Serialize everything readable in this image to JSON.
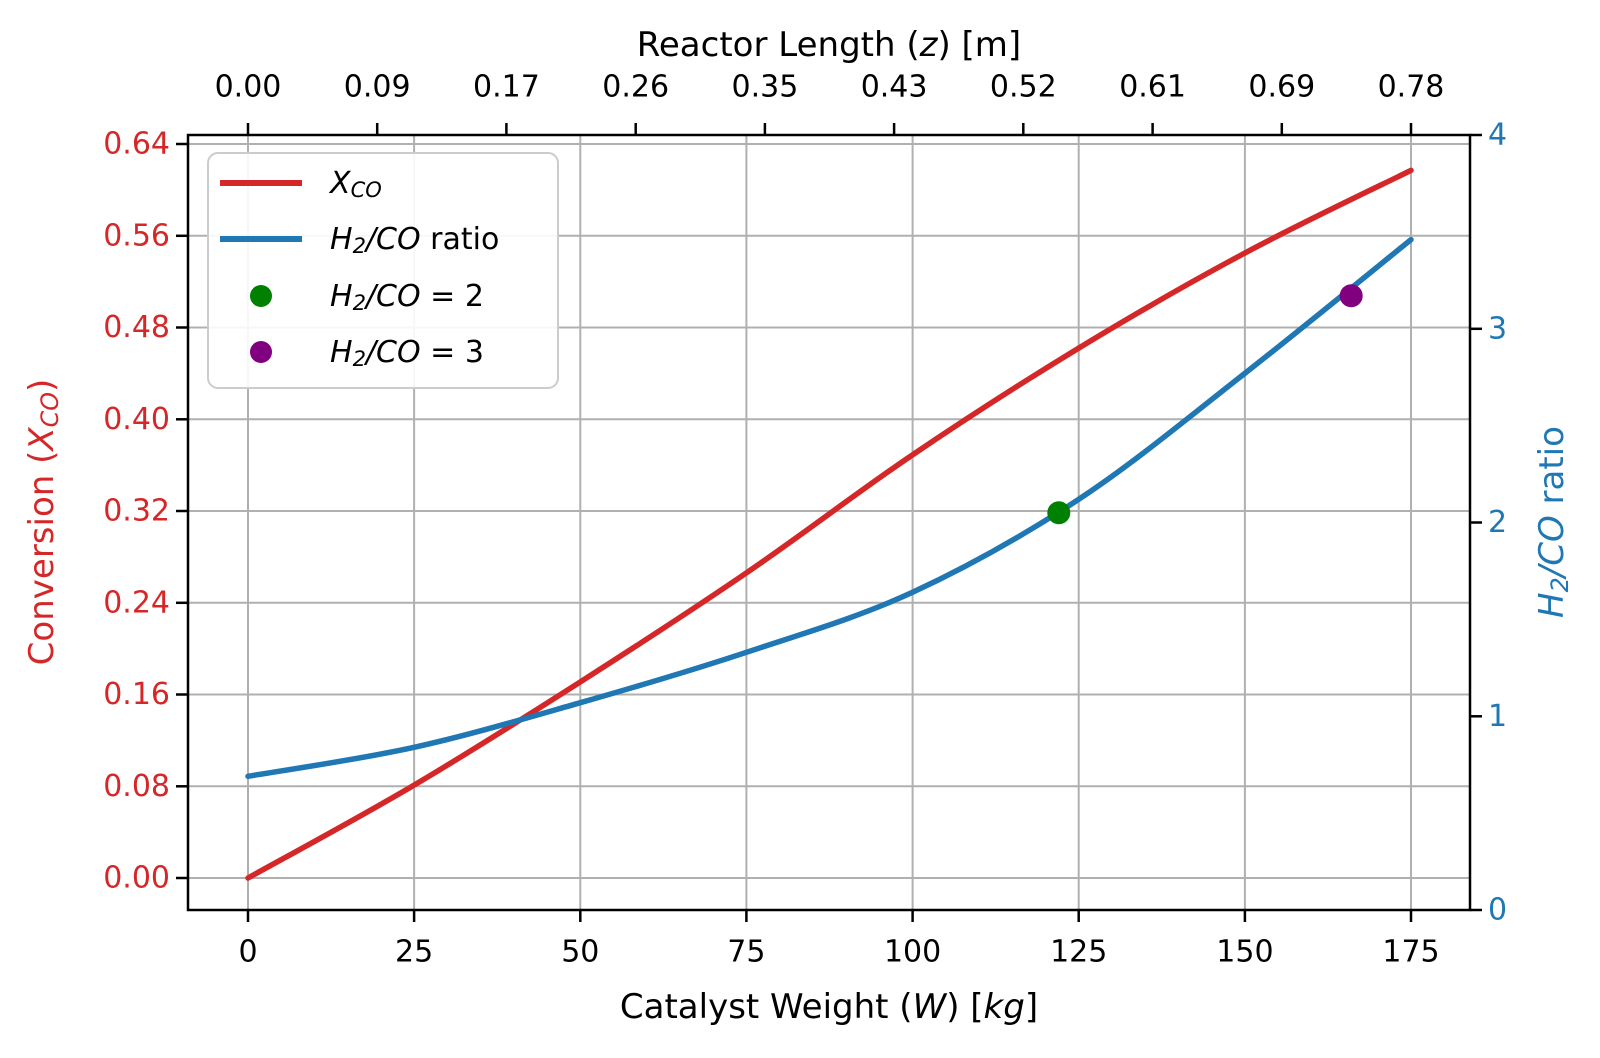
{
  "chart_data": {
    "type": "line",
    "grid": true,
    "legend_position": "upper left",
    "axes": {
      "top": {
        "label_text": "Reactor Length (z) [m]",
        "label_parts": [
          {
            "t": "Reactor Length (",
            "s": "n"
          },
          {
            "t": "z",
            "s": "i"
          },
          {
            "t": ") [m]",
            "s": "n"
          }
        ],
        "ticks": [
          "0.00",
          "0.09",
          "0.17",
          "0.26",
          "0.35",
          "0.43",
          "0.52",
          "0.61",
          "0.69",
          "0.78"
        ],
        "color": "#000000"
      },
      "bottom": {
        "label_text": "Catalyst Weight (W) [kg]",
        "label_parts": [
          {
            "t": "Catalyst Weight (",
            "s": "n"
          },
          {
            "t": "W",
            "s": "i"
          },
          {
            "t": ") [",
            "s": "n"
          },
          {
            "t": "kg",
            "s": "i"
          },
          {
            "t": "]",
            "s": "n"
          }
        ],
        "ticks": [
          "0",
          "25",
          "50",
          "75",
          "100",
          "125",
          "150",
          "175"
        ],
        "tick_values": [
          0,
          25,
          50,
          75,
          100,
          125,
          150,
          175
        ],
        "color": "#000000",
        "xlim": [
          -8.75,
          183.75
        ]
      },
      "left": {
        "label_text": "Conversion (X_CO)",
        "label_parts": [
          {
            "t": "Conversion (",
            "s": "n"
          },
          {
            "t": "X",
            "s": "i"
          },
          {
            "t": "CO",
            "s": "sub"
          },
          {
            "t": ")",
            "s": "n"
          }
        ],
        "ticks": [
          "0.00",
          "0.08",
          "0.16",
          "0.24",
          "0.32",
          "0.40",
          "0.48",
          "0.56",
          "0.64"
        ],
        "tick_values": [
          0.0,
          0.08,
          0.16,
          0.24,
          0.32,
          0.4,
          0.48,
          0.56,
          0.64
        ],
        "color": "#d62728",
        "ylim": [
          -0.028,
          0.648
        ]
      },
      "right": {
        "label_text": "H2/CO ratio",
        "label_parts": [
          {
            "t": "H",
            "s": "i"
          },
          {
            "t": "2",
            "s": "sub"
          },
          {
            "t": "/CO",
            "s": "i"
          },
          {
            "t": " ratio",
            "s": "n"
          }
        ],
        "ticks": [
          "0",
          "1",
          "2",
          "3",
          "4"
        ],
        "tick_values": [
          0,
          1,
          2,
          3,
          4
        ],
        "color": "#1f77b4",
        "ylim": [
          0,
          4
        ]
      }
    },
    "series": [
      {
        "name": "X_CO",
        "axis": "left",
        "color": "#d62728",
        "x": [
          0,
          25,
          50,
          75,
          100,
          125,
          150,
          175
        ],
        "y": [
          0.0,
          0.081,
          0.171,
          0.266,
          0.369,
          0.462,
          0.545,
          0.617
        ]
      },
      {
        "name": "H2/CO ratio",
        "axis": "right",
        "color": "#1f77b4",
        "x": [
          0,
          25,
          50,
          75,
          100,
          125,
          150,
          175
        ],
        "y": [
          0.69,
          0.84,
          1.07,
          1.33,
          1.64,
          2.12,
          2.77,
          3.46
        ]
      }
    ],
    "markers": [
      {
        "name": "H2/CO = 2",
        "axis": "right",
        "color": "#008000",
        "x": 122,
        "y": 2.05
      },
      {
        "name": "H2/CO = 3",
        "axis": "right",
        "color": "#800080",
        "x": 166,
        "y": 3.17
      }
    ],
    "legend": {
      "items": [
        {
          "marker": "line",
          "color": "#d62728",
          "parts": [
            {
              "t": "X",
              "s": "i"
            },
            {
              "t": "CO",
              "s": "sub"
            }
          ]
        },
        {
          "marker": "line",
          "color": "#1f77b4",
          "parts": [
            {
              "t": "H",
              "s": "i"
            },
            {
              "t": "2",
              "s": "sub"
            },
            {
              "t": "/CO",
              "s": "i"
            },
            {
              "t": " ratio",
              "s": "n"
            }
          ]
        },
        {
          "marker": "dot",
          "color": "#008000",
          "parts": [
            {
              "t": "H",
              "s": "i"
            },
            {
              "t": "2",
              "s": "sub"
            },
            {
              "t": "/CO",
              "s": "i"
            },
            {
              "t": " = 2",
              "s": "n"
            }
          ]
        },
        {
          "marker": "dot",
          "color": "#800080",
          "parts": [
            {
              "t": "H",
              "s": "i"
            },
            {
              "t": "2",
              "s": "sub"
            },
            {
              "t": "/CO",
              "s": "i"
            },
            {
              "t": " = 3",
              "s": "n"
            }
          ]
        }
      ]
    },
    "style": {
      "grid_color": "#b0b0b0",
      "spine_color": "#000000",
      "background": "#ffffff",
      "legend_border": "#cccccc"
    }
  }
}
